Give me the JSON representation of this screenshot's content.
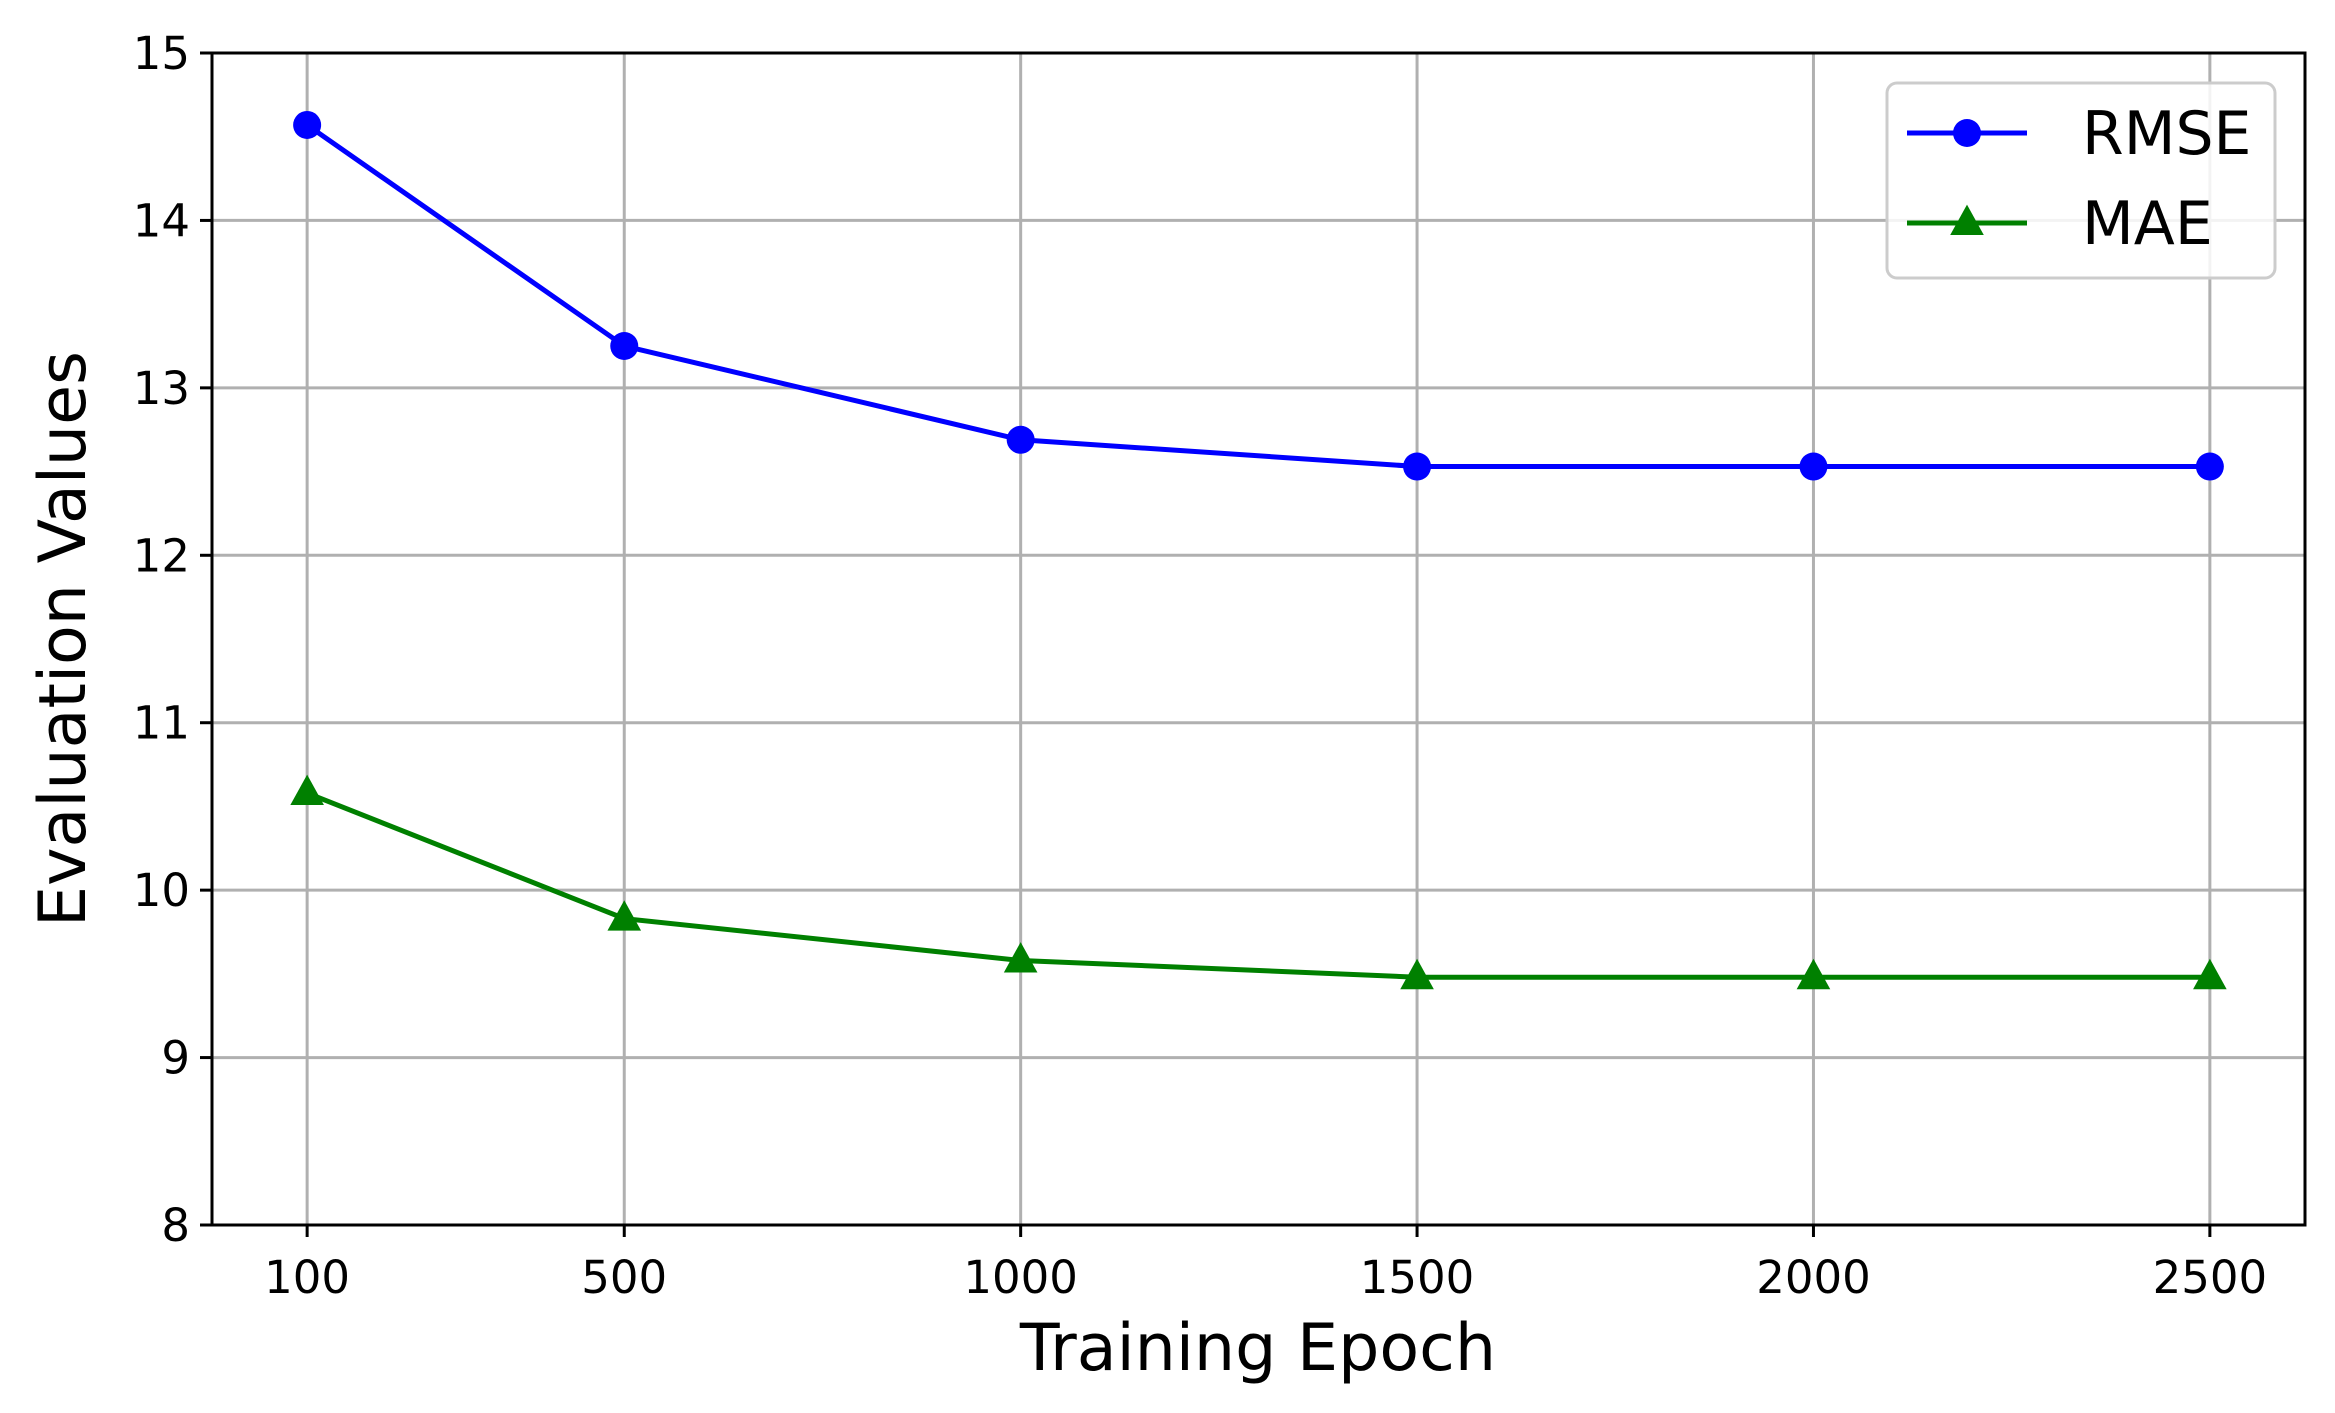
{
  "chart_data": {
    "type": "line",
    "title": "",
    "xlabel": "Training Epoch",
    "ylabel": "Evaluation Values",
    "x": [
      100,
      500,
      1000,
      1500,
      2000,
      2500
    ],
    "x_tick_labels": [
      "100",
      "500",
      "1000",
      "1500",
      "2000",
      "2500"
    ],
    "y_ticks": [
      8,
      9,
      10,
      11,
      12,
      13,
      14,
      15
    ],
    "ylim": [
      8,
      15
    ],
    "xlim": [
      -20,
      2620
    ],
    "grid": true,
    "legend_position": "top-right",
    "series": [
      {
        "name": "RMSE",
        "color": "#0000ff",
        "marker": "circle",
        "values": [
          14.57,
          13.25,
          12.69,
          12.53,
          12.53,
          12.53
        ]
      },
      {
        "name": "MAE",
        "color": "#008000",
        "marker": "triangle",
        "values": [
          10.58,
          9.83,
          9.58,
          9.48,
          9.48,
          9.48
        ]
      }
    ]
  }
}
